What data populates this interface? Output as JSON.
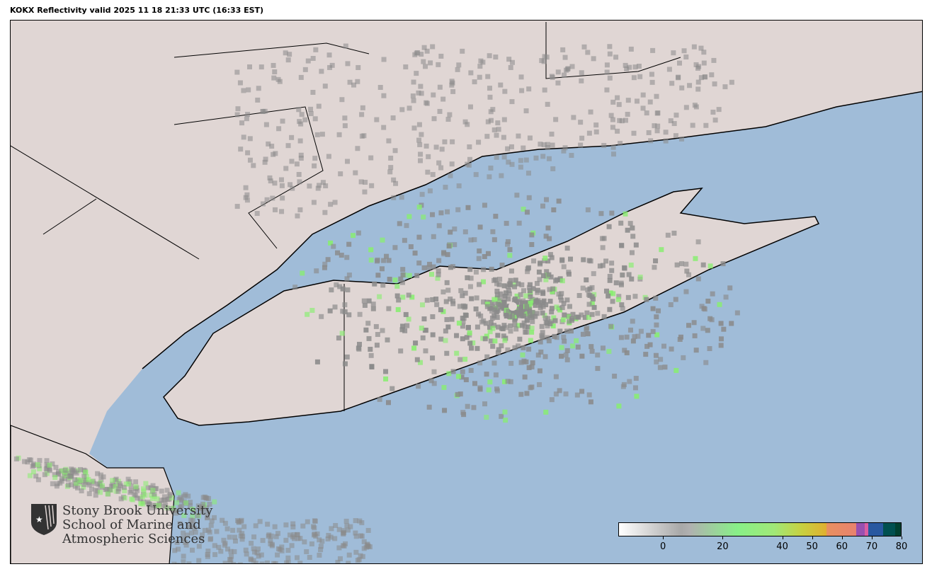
{
  "title": "KOKX Reflectivity valid 2025 11 18 21:33 UTC (16:33 EST)",
  "radar_site": "KOKX",
  "colors": {
    "land": "#e0d6d4",
    "water": "#a0bcd8",
    "echo_gray": "#8a8a8a",
    "echo_green": "#88ee70"
  },
  "colorbar": {
    "min": -15,
    "max": 80,
    "ticks": [
      0,
      20,
      40,
      50,
      60,
      70,
      80
    ],
    "tick_labels": [
      "0",
      "20",
      "40",
      "50",
      "60",
      "70",
      "80"
    ]
  },
  "logo": {
    "line1": "Stony Brook University",
    "line2": "School of Marine and",
    "line3": "Atmospheric Sciences",
    "icon": "shield-star-icon"
  }
}
